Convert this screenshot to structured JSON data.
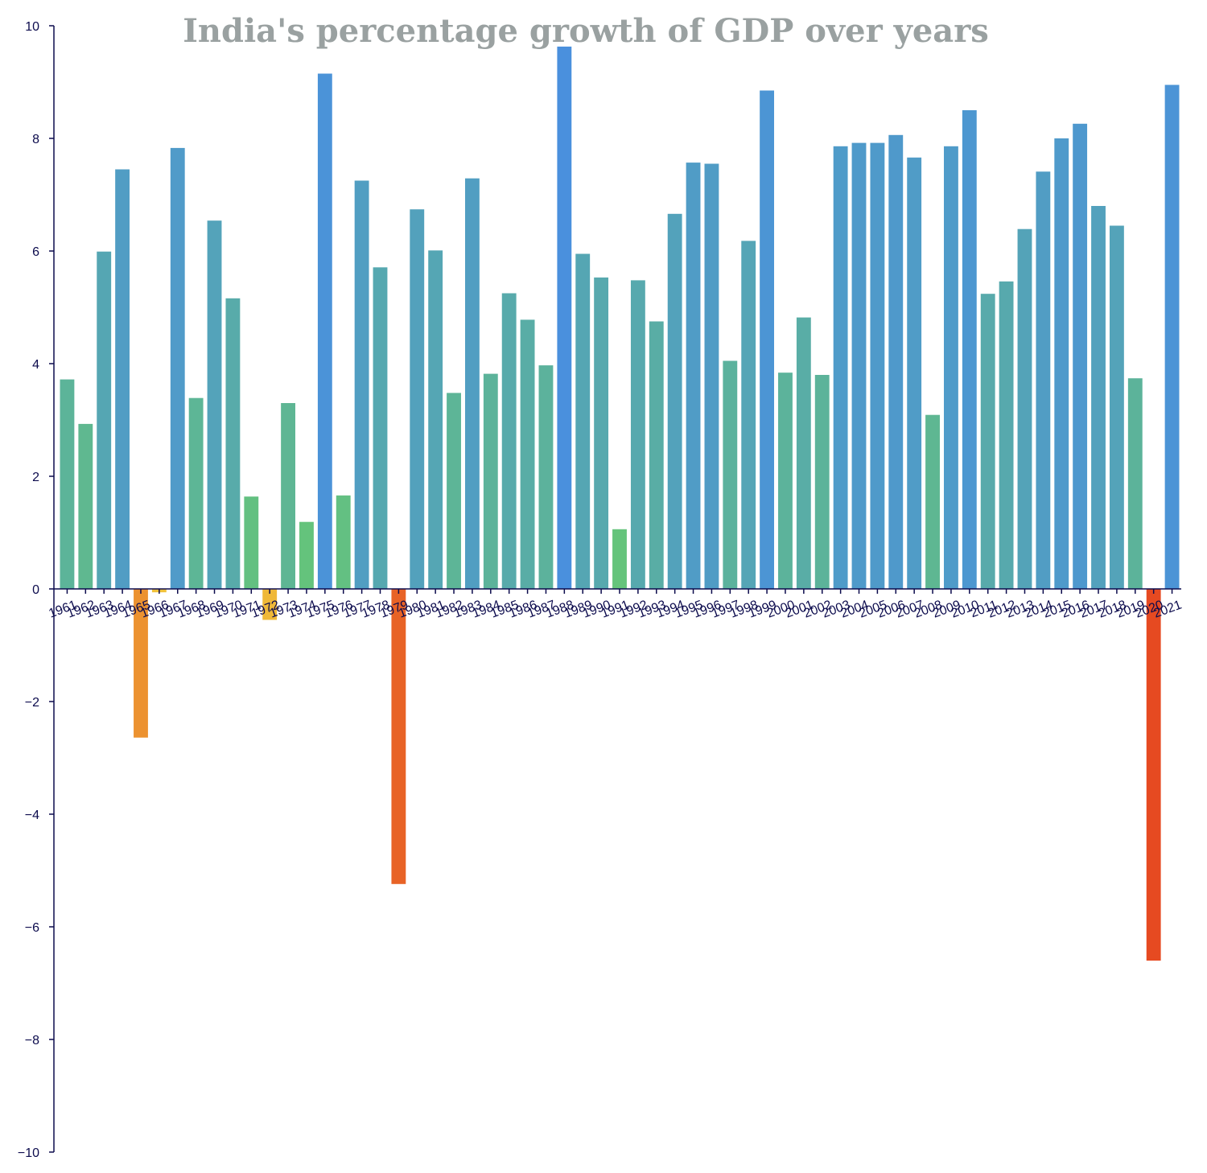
{
  "colors": {
    "axis": "#0c0b4d",
    "title": "#9aa1a1",
    "scale_low": "#e64a21",
    "scale_zero": "#f0c23a",
    "scale_mid": "#65c47a",
    "scale_high": "#4a90dd"
  },
  "chart_data": {
    "type": "bar",
    "title": "India's percentage growth of GDP over years",
    "xlabel": "",
    "ylabel": "",
    "ylim": [
      -10,
      10
    ],
    "yticks": [
      -10,
      -8,
      -6,
      -4,
      -2,
      0,
      2,
      4,
      6,
      8,
      10
    ],
    "ytick_labels": [
      "−10",
      "−8",
      "−6",
      "−4",
      "−2",
      "0",
      "2",
      "4",
      "6",
      "8",
      "10"
    ],
    "grid": false,
    "categories": [
      "1961",
      "1962",
      "1963",
      "1964",
      "1965",
      "1966",
      "1967",
      "1968",
      "1969",
      "1970",
      "1971",
      "1972",
      "1973",
      "1974",
      "1975",
      "1976",
      "1977",
      "1978",
      "1979",
      "1980",
      "1981",
      "1982",
      "1983",
      "1984",
      "1985",
      "1986",
      "1987",
      "1988",
      "1989",
      "1990",
      "1991",
      "1992",
      "1993",
      "1994",
      "1995",
      "1996",
      "1997",
      "1998",
      "1999",
      "2000",
      "2001",
      "2002",
      "2003",
      "2004",
      "2005",
      "2006",
      "2007",
      "2008",
      "2009",
      "2010",
      "2011",
      "2012",
      "2013",
      "2014",
      "2015",
      "2016",
      "2017",
      "2018",
      "2019",
      "2020",
      "2021"
    ],
    "values": [
      3.72,
      2.93,
      5.99,
      7.45,
      -2.64,
      -0.06,
      7.83,
      3.39,
      6.54,
      5.16,
      1.64,
      -0.55,
      3.3,
      1.19,
      9.15,
      1.66,
      7.25,
      5.71,
      -5.24,
      6.74,
      6.01,
      3.48,
      7.29,
      3.82,
      5.25,
      4.78,
      3.97,
      9.63,
      5.95,
      5.53,
      1.06,
      5.48,
      4.75,
      6.66,
      7.57,
      7.55,
      4.05,
      6.18,
      8.85,
      3.84,
      4.82,
      3.8,
      7.86,
      7.92,
      7.92,
      8.06,
      7.66,
      3.09,
      7.86,
      8.5,
      5.24,
      5.46,
      6.39,
      7.41,
      8.0,
      8.26,
      6.8,
      6.45,
      3.74,
      -6.6,
      8.95
    ]
  }
}
